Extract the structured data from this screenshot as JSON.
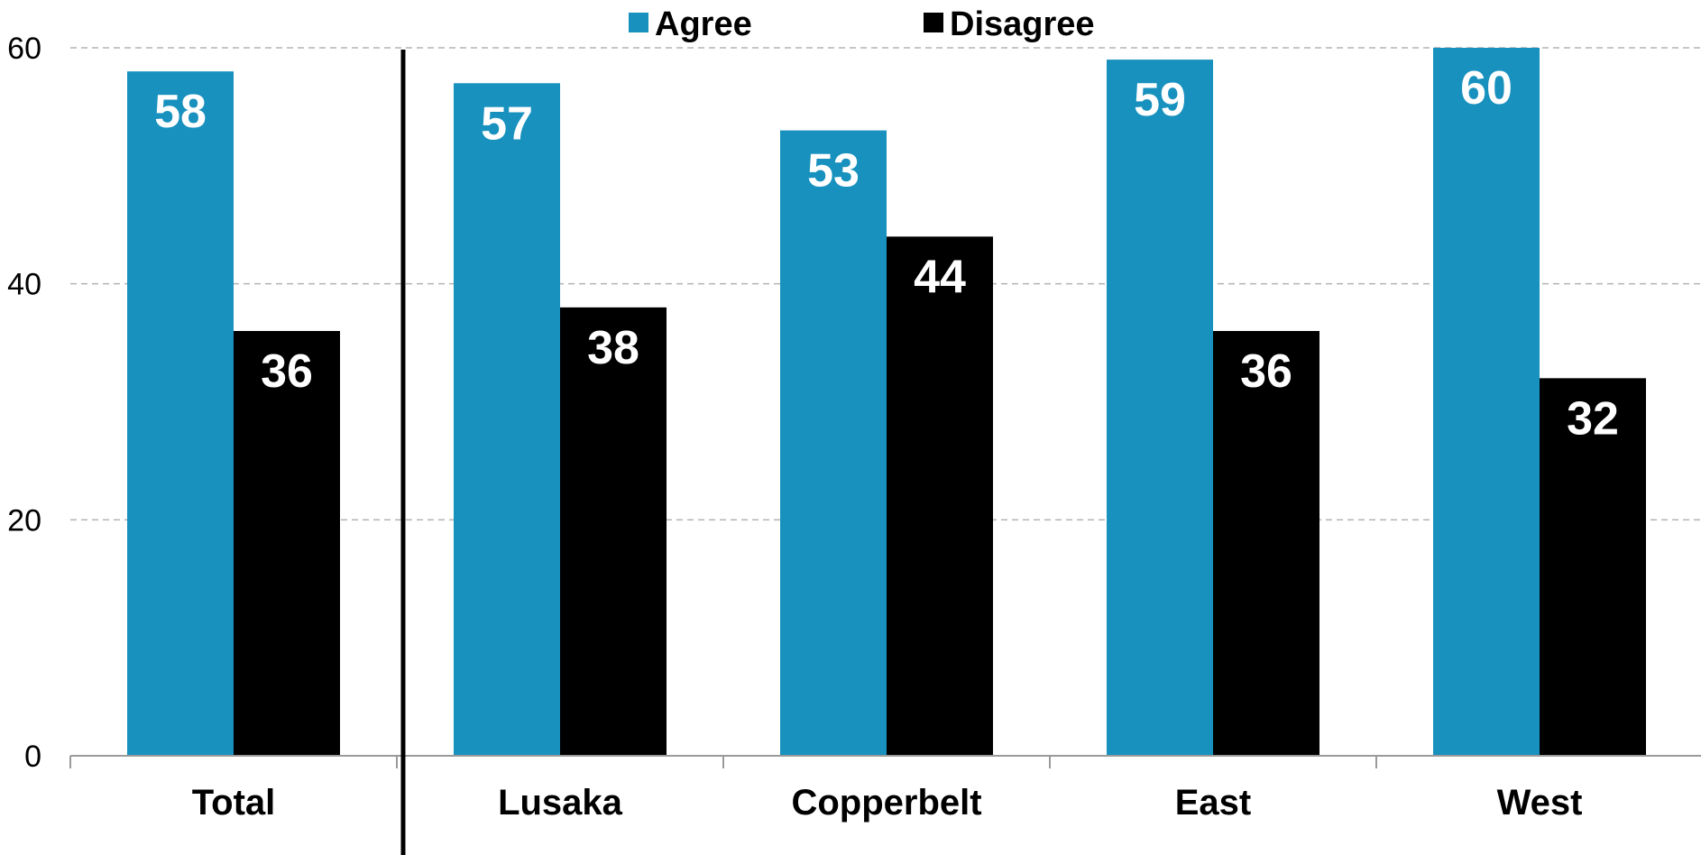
{
  "chart_data": {
    "type": "bar",
    "categories": [
      "Total",
      "Lusaka",
      "Copperbelt",
      "East",
      "West"
    ],
    "series": [
      {
        "name": "Agree",
        "values": [
          58,
          57,
          53,
          59,
          60
        ],
        "color": "#1891BE"
      },
      {
        "name": "Disagree",
        "values": [
          36,
          38,
          44,
          36,
          32
        ],
        "color": "#000000"
      }
    ],
    "y_ticks": [
      "0",
      "20",
      "40",
      "60"
    ],
    "ylim": [
      0,
      60
    ],
    "grid": true,
    "legend_position": "top-center",
    "title": "",
    "xlabel": "",
    "ylabel": ""
  }
}
